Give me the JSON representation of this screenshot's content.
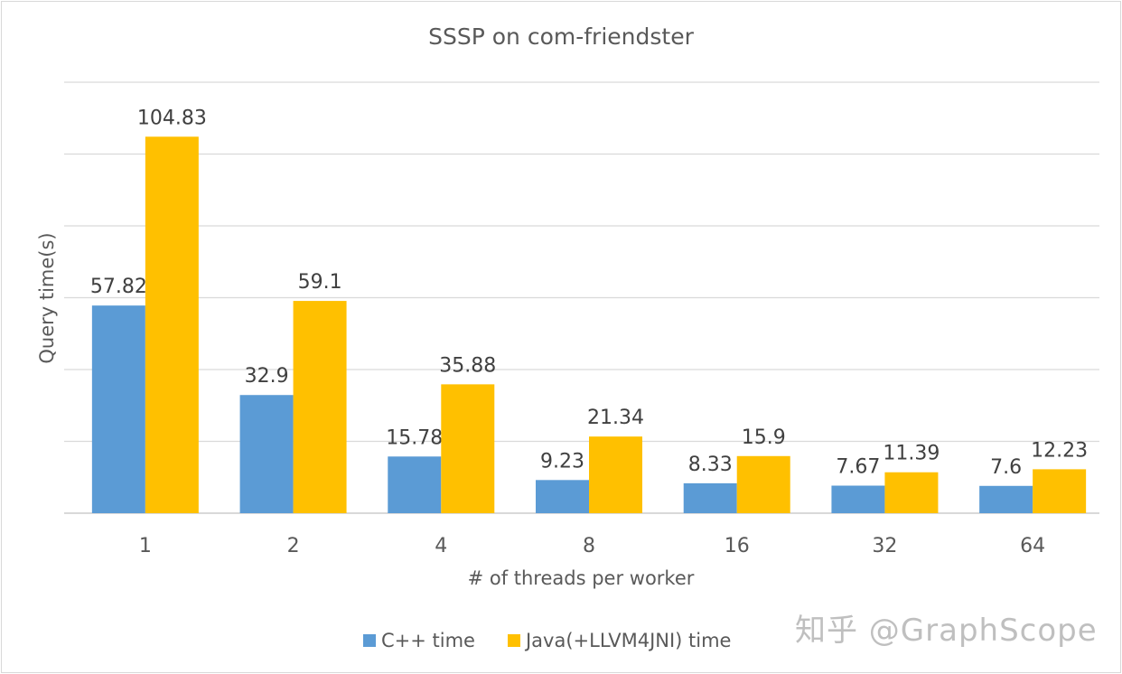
{
  "chart_data": {
    "type": "bar",
    "title": "SSSP on com-friendster",
    "xlabel": "# of threads per worker",
    "ylabel": "Query time(s)",
    "categories": [
      "1",
      "2",
      "4",
      "8",
      "16",
      "32",
      "64"
    ],
    "series": [
      {
        "name": "C++ time",
        "color": "#5b9bd5",
        "values": [
          57.82,
          32.9,
          15.78,
          9.23,
          8.33,
          7.67,
          7.6
        ]
      },
      {
        "name": "Java(+LLVM4JNI) time",
        "color": "#ffc000",
        "values": [
          104.83,
          59.1,
          35.88,
          21.34,
          15.9,
          11.39,
          12.23
        ]
      }
    ],
    "ylim": [
      0,
      120
    ],
    "grid_step": 20,
    "grid": true,
    "y_tick_labels_shown": false,
    "legend_position": "bottom"
  },
  "labels": {
    "title": "SSSP on com-friendster",
    "xlabel": "# of threads per worker",
    "ylabel": "Query time(s)",
    "legend_cpp": "C++ time",
    "legend_java": "Java(+LLVM4JNI) time",
    "watermark": "知乎 @GraphScope"
  }
}
